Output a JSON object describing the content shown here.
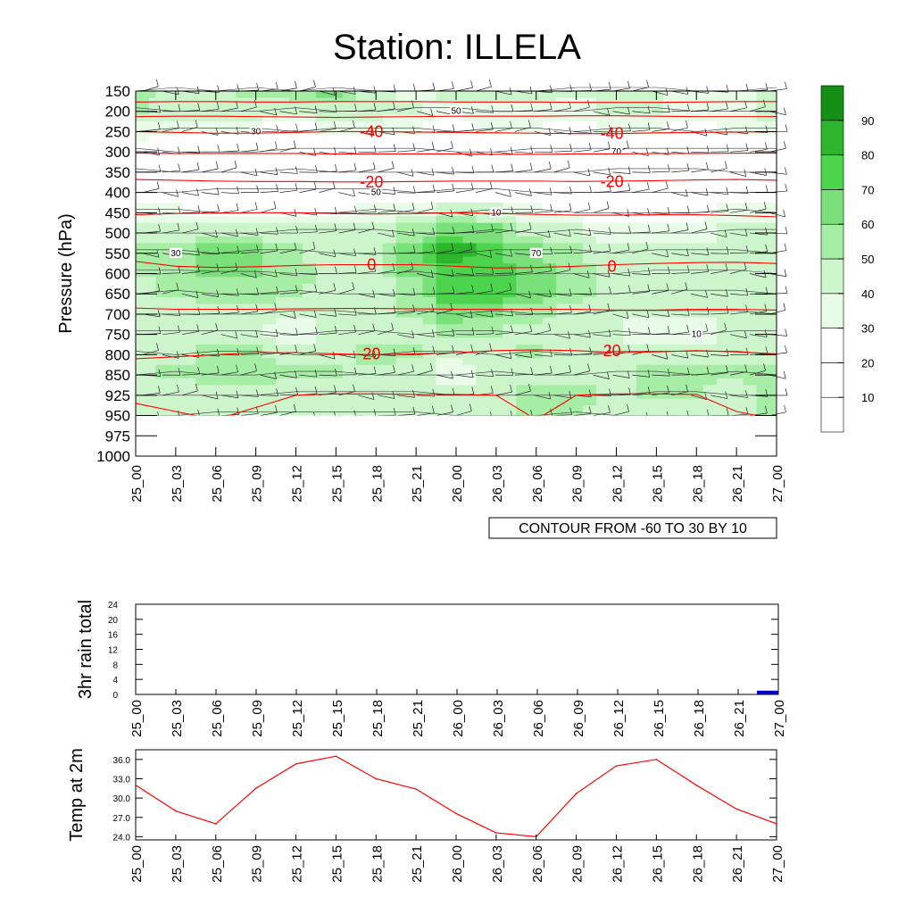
{
  "title": "Station: ILLELA",
  "time_labels": [
    "25_00",
    "25_03",
    "25_06",
    "25_09",
    "25_12",
    "25_15",
    "25_18",
    "25_21",
    "26_00",
    "26_03",
    "26_06",
    "26_09",
    "26_12",
    "26_15",
    "26_18",
    "26_21",
    "27_00"
  ],
  "colors": {
    "temp_contour": "#ff0000",
    "rh_line": "#333333",
    "rain_bar": "#0000cc",
    "temp_line": "#ff0000",
    "rh_fill": [
      "#ffffff",
      "#ffffff",
      "#ffffff",
      "#e8fce8",
      "#ccf5cc",
      "#a6eda6",
      "#7ae07a",
      "#4dd44d",
      "#2db52d",
      "#159015"
    ]
  },
  "chart_data": [
    {
      "type": "heatmap",
      "name": "cross-section",
      "title": "Station: ILLELA",
      "ylabel": "Pressure (hPa)",
      "y_ticks": [
        150,
        200,
        250,
        300,
        350,
        400,
        450,
        500,
        550,
        600,
        650,
        700,
        750,
        800,
        850,
        925,
        950,
        975,
        1000
      ],
      "levels_with_data": [
        150,
        200,
        250,
        300,
        350,
        400,
        450,
        500,
        550,
        600,
        650,
        700,
        750,
        800,
        850,
        925,
        950
      ],
      "relative_humidity": [
        [
          55,
          40,
          45,
          50,
          55,
          60,
          45,
          35,
          45,
          45,
          45,
          40,
          40,
          40,
          35,
          35,
          40
        ],
        [
          50,
          45,
          45,
          45,
          40,
          45,
          45,
          40,
          30,
          35,
          35,
          35,
          40,
          40,
          35,
          35,
          45
        ],
        [
          35,
          30,
          30,
          30,
          25,
          30,
          30,
          30,
          25,
          30,
          30,
          25,
          30,
          30,
          25,
          30,
          30
        ],
        [
          20,
          25,
          25,
          25,
          20,
          20,
          20,
          20,
          25,
          25,
          20,
          20,
          20,
          20,
          20,
          20,
          20
        ],
        [
          20,
          15,
          15,
          15,
          10,
          15,
          15,
          15,
          15,
          15,
          15,
          15,
          10,
          10,
          10,
          15,
          15
        ],
        [
          15,
          15,
          10,
          10,
          10,
          10,
          10,
          15,
          20,
          20,
          15,
          15,
          15,
          15,
          15,
          15,
          15
        ],
        [
          30,
          30,
          25,
          25,
          25,
          25,
          30,
          35,
          45,
          40,
          30,
          25,
          25,
          25,
          25,
          30,
          35
        ],
        [
          45,
          45,
          45,
          45,
          40,
          40,
          40,
          55,
          65,
          60,
          45,
          40,
          35,
          35,
          35,
          40,
          40
        ],
        [
          50,
          50,
          65,
          60,
          50,
          45,
          45,
          65,
          85,
          70,
          60,
          50,
          45,
          40,
          40,
          40,
          45
        ],
        [
          50,
          50,
          62,
          62,
          55,
          45,
          45,
          62,
          78,
          78,
          65,
          55,
          45,
          40,
          40,
          40,
          45
        ],
        [
          45,
          50,
          55,
          55,
          50,
          45,
          45,
          55,
          75,
          75,
          65,
          55,
          45,
          40,
          40,
          40,
          45
        ],
        [
          45,
          45,
          45,
          45,
          40,
          40,
          45,
          50,
          65,
          60,
          55,
          45,
          40,
          40,
          40,
          40,
          45
        ],
        [
          40,
          40,
          40,
          40,
          35,
          40,
          40,
          45,
          50,
          50,
          45,
          45,
          40,
          35,
          35,
          40,
          40
        ],
        [
          40,
          45,
          50,
          50,
          45,
          45,
          55,
          50,
          40,
          45,
          50,
          45,
          40,
          40,
          40,
          40,
          45
        ],
        [
          45,
          50,
          55,
          55,
          50,
          50,
          45,
          45,
          35,
          40,
          45,
          45,
          40,
          50,
          55,
          50,
          55
        ],
        [
          45,
          45,
          45,
          45,
          40,
          40,
          40,
          40,
          45,
          45,
          55,
          55,
          45,
          50,
          50,
          45,
          55
        ],
        [
          45,
          45,
          40,
          40,
          40,
          40,
          40,
          40,
          45,
          45,
          55,
          50,
          45,
          45,
          45,
          45,
          55
        ]
      ],
      "temperature_contours": [
        {
          "level": -40,
          "label": "-40",
          "pressure": [
            250,
            252,
            254,
            254,
            252,
            250,
            250,
            251,
            252,
            253,
            254,
            255,
            255,
            253,
            252,
            251,
            250
          ]
        },
        {
          "level": -40,
          "label": "",
          "pressure": [
            213,
            212,
            212,
            213,
            214,
            215,
            214,
            213,
            212,
            212,
            212,
            211,
            211,
            212,
            213,
            213,
            213
          ]
        },
        {
          "level": -40,
          "label": "",
          "pressure": [
            177,
            176,
            176,
            177,
            177,
            176,
            176,
            176,
            177,
            177,
            177,
            178,
            178,
            178,
            177,
            176,
            176
          ]
        },
        {
          "level": -30,
          "label": "",
          "pressure": [
            303,
            304,
            304,
            304,
            304,
            305,
            305,
            305,
            305,
            306,
            306,
            305,
            305,
            304,
            304,
            303,
            303
          ]
        },
        {
          "level": -20,
          "label": "-20",
          "pressure": [
            368,
            370,
            372,
            373,
            373,
            374,
            374,
            373,
            372,
            372,
            372,
            373,
            372,
            371,
            369,
            368,
            370
          ]
        },
        {
          "level": -10,
          "label": "",
          "pressure": [
            455,
            452,
            451,
            450,
            450,
            452,
            453,
            452,
            450,
            452,
            454,
            456,
            456,
            455,
            455,
            457,
            460
          ]
        },
        {
          "level": 0,
          "label": "0",
          "pressure": [
            570,
            582,
            585,
            583,
            580,
            578,
            578,
            578,
            582,
            586,
            585,
            582,
            578,
            575,
            573,
            572,
            575
          ]
        },
        {
          "level": 10,
          "label": "",
          "pressure": [
            685,
            688,
            688,
            688,
            687,
            686,
            686,
            687,
            688,
            688,
            688,
            688,
            690,
            690,
            688,
            688,
            690
          ]
        },
        {
          "level": 20,
          "label": "20",
          "pressure": [
            810,
            805,
            800,
            795,
            795,
            798,
            800,
            798,
            795,
            790,
            788,
            790,
            795,
            793,
            790,
            793,
            798
          ]
        },
        {
          "level": 30,
          "label": "",
          "pressure": [
            935,
            945,
            955,
            940,
            925,
            920,
            920,
            922,
            922,
            925,
            955,
            925,
            920,
            920,
            922,
            945,
            955
          ]
        }
      ],
      "rh_labels": [
        "10",
        "30",
        "50",
        "70"
      ],
      "colorbar_ticks": [
        10,
        20,
        30,
        40,
        50,
        60,
        70,
        80,
        90
      ],
      "footnote": "CONTOUR FROM -60 TO 30 BY 10"
    },
    {
      "type": "bar",
      "name": "rain",
      "ylabel": "3hr rain total",
      "ylim": [
        0,
        24
      ],
      "y_ticks": [
        0,
        4,
        8,
        12,
        16,
        20,
        24
      ],
      "x": [
        "25_00",
        "25_03",
        "25_06",
        "25_09",
        "25_12",
        "25_15",
        "25_18",
        "25_21",
        "26_00",
        "26_03",
        "26_06",
        "26_09",
        "26_12",
        "26_15",
        "26_18",
        "26_21",
        "27_00"
      ],
      "values": [
        0,
        0,
        0,
        0,
        0,
        0,
        0,
        0,
        0,
        0,
        0,
        0,
        0,
        0,
        0,
        0,
        1
      ]
    },
    {
      "type": "line",
      "name": "temp",
      "ylabel": "Temp at 2m",
      "ylim": [
        23.5,
        37.5
      ],
      "y_ticks": [
        "24.0",
        "27.0",
        "30.0",
        "33.0",
        "36.0"
      ],
      "x": [
        "25_00",
        "25_03",
        "25_06",
        "25_09",
        "25_12",
        "25_15",
        "25_18",
        "25_21",
        "26_00",
        "26_03",
        "26_06",
        "26_09",
        "26_12",
        "26_15",
        "26_18",
        "26_21",
        "27_00"
      ],
      "values": [
        32.0,
        28.0,
        26.0,
        31.5,
        35.3,
        36.5,
        33.0,
        31.4,
        27.6,
        24.6,
        24.0,
        30.7,
        35.0,
        36.0,
        32.0,
        28.3,
        26.0
      ]
    }
  ]
}
